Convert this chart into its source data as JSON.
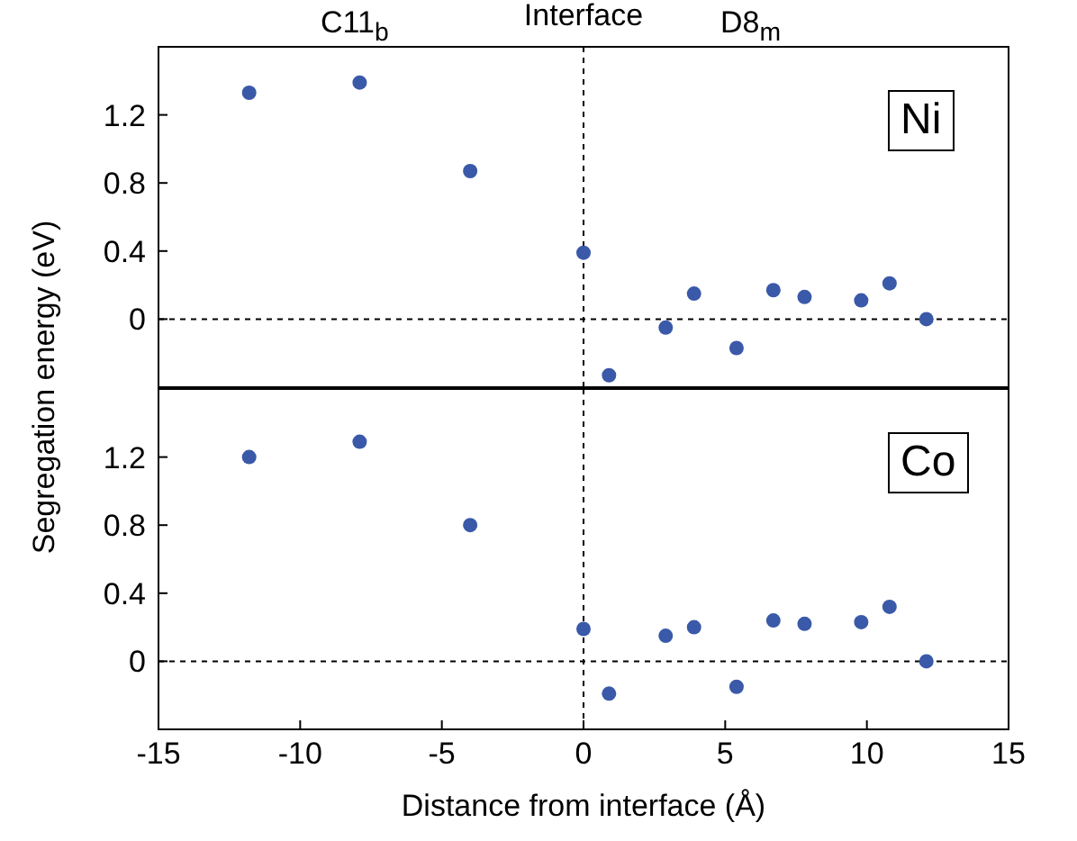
{
  "chart_data": [
    {
      "type": "scatter",
      "title": "Ni",
      "ylabel": "Segregation energy (eV)",
      "annotations": [
        "C11$_{b}$",
        "D8$_{m}$"
      ],
      "x": [
        -11.8,
        -7.9,
        -4.0,
        0,
        0.9,
        2.9,
        3.9,
        5.4,
        6.7,
        7.8,
        9.8,
        10.8,
        12.1
      ],
      "series": [
        {
          "color": "#3a59a8",
          "values": [
            1.33,
            1.39,
            0.87,
            0.39,
            -0.33,
            -0.05,
            0.15,
            -0.17,
            0.17,
            0.13,
            0.11,
            0.21,
            0
          ]
        }
      ],
      "xlim": [
        -15,
        15
      ],
      "xticks": [
        -15,
        -10,
        -5,
        0,
        5,
        10,
        15
      ],
      "ylim": [
        -0.4,
        1.6
      ],
      "yticks": [
        0,
        0.4,
        0.8,
        1.2
      ],
      "tick_labels": "y",
      "grid": false,
      "marker": "circle",
      "ref_lines": [
        {
          "axis": "x",
          "value": 0,
          "label": "Interface",
          "line_style": "dashed",
          "color": "#000000"
        },
        {
          "axis": "y",
          "value": 0,
          "label": null,
          "line_style": "dashed",
          "color": "#000000"
        }
      ]
    },
    {
      "type": "scatter",
      "title": "Co",
      "xlabel": "Distance from interface (Å)",
      "x": [
        -11.8,
        -7.9,
        -4.0,
        0,
        0.9,
        2.9,
        3.9,
        5.4,
        6.7,
        7.8,
        9.8,
        10.8,
        12.1
      ],
      "series": [
        {
          "color": "#3a59a8",
          "values": [
            1.2,
            1.29,
            0.8,
            0.19,
            -0.19,
            0.15,
            0.2,
            -0.15,
            0.24,
            0.22,
            0.23,
            0.32,
            0
          ]
        }
      ],
      "xlim": [
        -15,
        15
      ],
      "xticks": [
        -15,
        -10,
        -5,
        0,
        5,
        10,
        15
      ],
      "ylim": [
        -0.4,
        1.6
      ],
      "yticks": [
        0,
        0.4,
        0.8,
        1.2
      ],
      "grid": false,
      "marker": "circle",
      "ref_lines": [
        {
          "axis": "x",
          "value": 0,
          "label": null,
          "line_style": "dashed",
          "color": "#000000"
        },
        {
          "axis": "y",
          "value": 0,
          "label": null,
          "line_style": "dashed",
          "color": "#000000"
        }
      ]
    }
  ]
}
